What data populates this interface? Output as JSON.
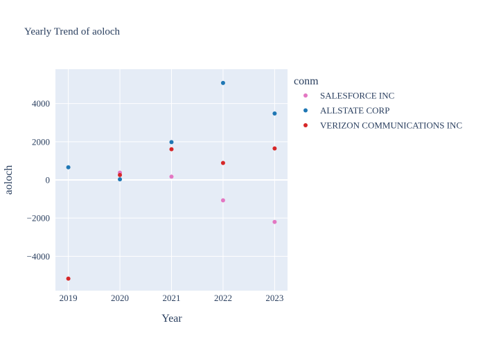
{
  "chart_data": {
    "type": "scatter",
    "title": "Yearly Trend of aoloch",
    "xlabel": "Year",
    "ylabel": "aoloch",
    "x_ticks": [
      2019,
      2020,
      2021,
      2022,
      2023
    ],
    "x_tick_labels": [
      "2019",
      "2020",
      "2021",
      "2022",
      "2023"
    ],
    "y_ticks": [
      -4000,
      -2000,
      0,
      2000,
      4000
    ],
    "y_tick_labels": [
      "−4000",
      "−2000",
      "0",
      "2000",
      "4000"
    ],
    "xlim": [
      2018.75,
      2023.25
    ],
    "ylim": [
      -5800,
      5800
    ],
    "grid": true,
    "legend_title": "conm",
    "legend_position": "right",
    "background_color": "#e5ecf6",
    "series": [
      {
        "name": "SALESFORCE INC",
        "color": "#e377c2",
        "x": [
          2020,
          2021,
          2022,
          2023
        ],
        "y": [
          380,
          170,
          -1070,
          -2200
        ]
      },
      {
        "name": "ALLSTATE CORP",
        "color": "#1f77b4",
        "x": [
          2019,
          2020,
          2021,
          2022,
          2023
        ],
        "y": [
          660,
          30,
          1980,
          5080,
          3480
        ]
      },
      {
        "name": "VERIZON COMMUNICATIONS INC",
        "color": "#d62728",
        "x": [
          2019,
          2020,
          2021,
          2022,
          2023
        ],
        "y": [
          -5170,
          260,
          1610,
          890,
          1650
        ]
      }
    ]
  }
}
